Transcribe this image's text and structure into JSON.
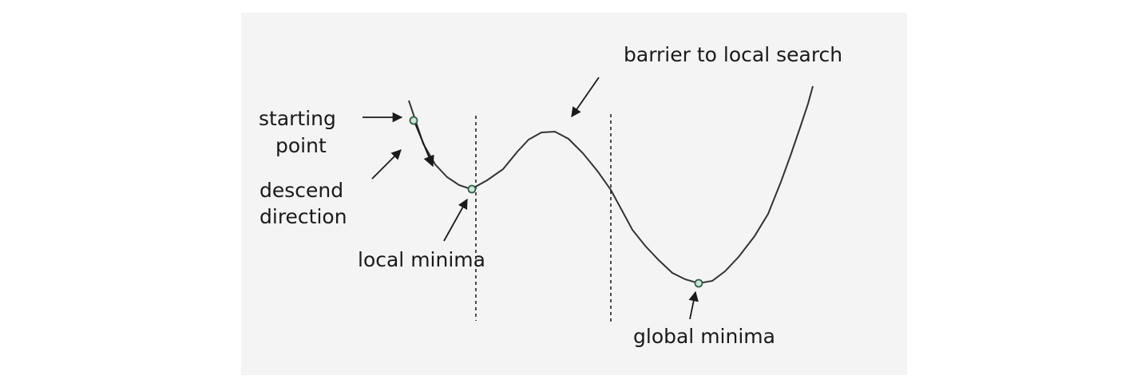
{
  "labels": {
    "starting_point": [
      "starting",
      "point"
    ],
    "descend_direction": [
      "descend",
      "direction"
    ],
    "local_minima": "local minima",
    "barrier": "barrier to local search",
    "global_minima": "global minima"
  },
  "colors": {
    "curve": "#333333",
    "marker_stroke": "#2f5f4a",
    "marker_fill": "#cfe6d6",
    "panel": "#f4f4f4"
  }
}
